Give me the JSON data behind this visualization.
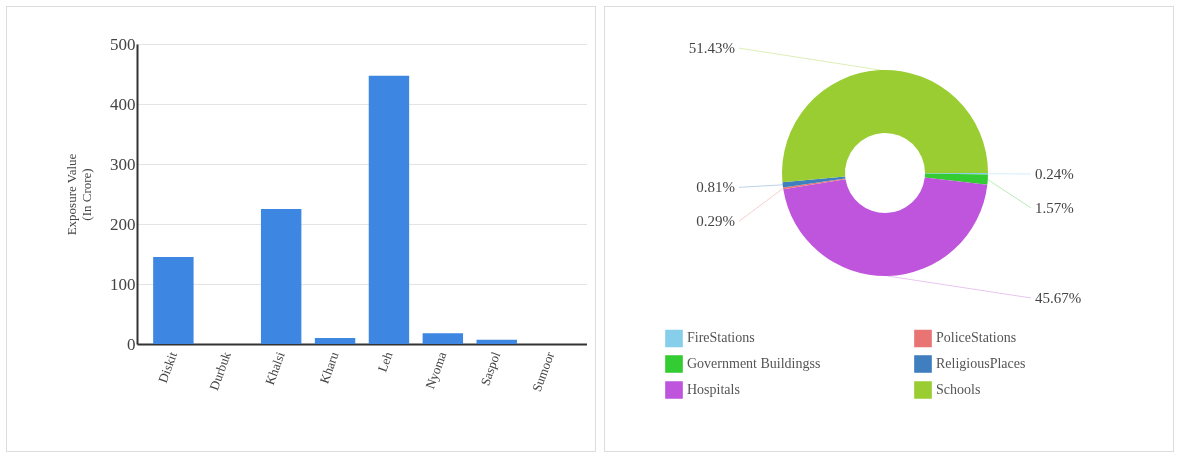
{
  "chart_data": [
    {
      "type": "bar",
      "ylabel": "Exposure Value\n(In Crore)",
      "categories": [
        "Diskit",
        "Durbuk",
        "Khalsi",
        "Kharu",
        "Leh",
        "Nyoma",
        "Saspol",
        "Sumoor"
      ],
      "values": [
        145,
        0,
        225,
        10,
        447,
        18,
        7,
        0
      ],
      "color": "#3d86e2",
      "ylim": [
        0,
        500
      ],
      "yticks": [
        0,
        100,
        200,
        300,
        400,
        500
      ],
      "grid": "y"
    },
    {
      "type": "donut",
      "categories": [
        "FireStations",
        "Government Buildingss",
        "Hospitals",
        "PoliceStations",
        "ReligiousPlaces",
        "Schools"
      ],
      "values": [
        0.24,
        1.57,
        45.67,
        0.29,
        0.81,
        51.43
      ],
      "colors": [
        "#87ceeb",
        "#33cc33",
        "#bf55dc",
        "#e87474",
        "#3f7fbf",
        "#9acd32"
      ],
      "value_labels": [
        "0.24%",
        "1.57%",
        "45.67%",
        "0.29%",
        "0.81%",
        "51.43%"
      ],
      "legend": "bottom"
    }
  ]
}
